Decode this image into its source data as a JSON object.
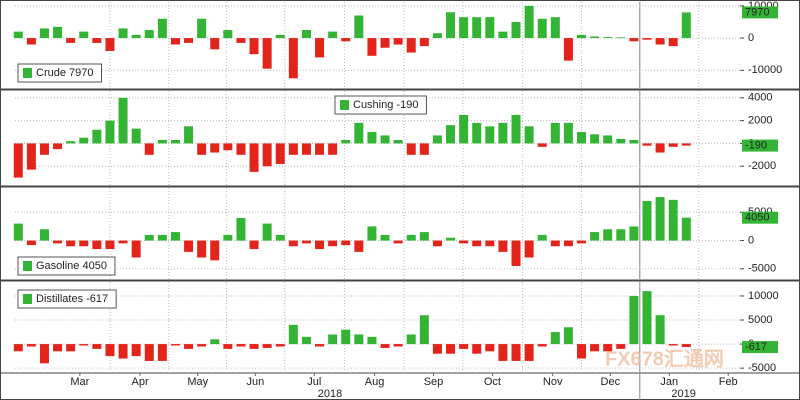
{
  "chart_data": {
    "type": "bar",
    "categories": [
      null,
      null,
      null,
      null,
      null,
      null,
      null,
      null,
      null,
      null,
      null,
      null,
      null,
      null,
      null,
      null,
      null,
      null,
      null,
      null,
      null,
      null,
      null,
      null,
      null,
      null,
      null,
      null,
      null,
      null,
      null,
      null,
      null,
      null,
      null,
      null,
      null,
      null,
      null,
      null,
      null,
      null,
      null,
      null,
      null,
      null,
      null,
      null,
      null,
      null,
      null,
      null
    ],
    "xlim": [
      -0.25,
      55.1
    ],
    "xticks": [
      {
        "value": 4.7,
        "label": "Mar"
      },
      {
        "value": 9.3,
        "label": "Apr"
      },
      {
        "value": 13.7,
        "label": "May"
      },
      {
        "value": 18.1,
        "label": "Jun"
      },
      {
        "value": 22.6,
        "label": "Jul"
      },
      {
        "value": 27.2,
        "label": "Aug"
      },
      {
        "value": 31.7,
        "label": "Sep"
      },
      {
        "value": 36.2,
        "label": "Oct"
      },
      {
        "value": 40.8,
        "label": "Nov"
      },
      {
        "value": 45.2,
        "label": "Dec"
      },
      {
        "value": 49.7,
        "label": "Jan"
      },
      {
        "value": 54.2,
        "label": "Feb"
      }
    ],
    "year_labels": [
      {
        "value": 23.8,
        "label": "2018"
      },
      {
        "value": 50.8,
        "label": "2019"
      }
    ],
    "positive_color": "#34b434",
    "negative_color": "#e3241b",
    "grid": true,
    "watermark": "FX678汇通网",
    "series": [
      {
        "name": "Crude",
        "legend": "Crude 7970",
        "last_label": 7970,
        "ylim": [
          -15500,
          11200
        ],
        "yticks": [
          -10000,
          0,
          10000
        ],
        "values": [
          2000,
          -2000,
          3000,
          3500,
          -1500,
          2000,
          -1500,
          -4000,
          3000,
          1000,
          2500,
          6000,
          -2000,
          -1500,
          6000,
          -3500,
          2500,
          -1500,
          -5000,
          -9500,
          1000,
          -12500,
          2500,
          -6000,
          2000,
          -1000,
          7000,
          -5500,
          -3000,
          -2000,
          -4500,
          -2500,
          1500,
          8000,
          6500,
          6500,
          6500,
          2000,
          5000,
          10000,
          6000,
          6500,
          -7000,
          1000,
          500,
          300,
          200,
          -1000,
          -500,
          -2000,
          -2500,
          7970
        ]
      },
      {
        "name": "Cushing",
        "legend": "Cushing -190",
        "last_label": -190,
        "ylim": [
          -3650,
          4600
        ],
        "yticks": [
          -2000,
          0,
          2000,
          4000
        ],
        "values": [
          -3000,
          -2300,
          -1000,
          -500,
          200,
          500,
          1200,
          2000,
          4000,
          1300,
          -1000,
          300,
          300,
          1500,
          -1000,
          -800,
          -600,
          -1000,
          -2500,
          -2000,
          -1800,
          -1000,
          -1000,
          -1000,
          -1000,
          300,
          1800,
          1000,
          700,
          300,
          -1000,
          -1000,
          700,
          1600,
          2500,
          1800,
          1500,
          1800,
          2500,
          1500,
          -300,
          1800,
          1800,
          1000,
          800,
          700,
          400,
          300,
          -200,
          -800,
          -300,
          -190
        ]
      },
      {
        "name": "Gasoline",
        "legend": "Gasoline 4050",
        "last_label": 4050,
        "ylim": [
          -6800,
          9300
        ],
        "yticks": [
          -5000,
          0,
          5000
        ],
        "values": [
          3000,
          -800,
          2000,
          -500,
          -1000,
          -1000,
          -1500,
          -1500,
          -500,
          -3000,
          1000,
          1000,
          1500,
          -2000,
          -3000,
          -3500,
          1000,
          4000,
          -1500,
          3000,
          1000,
          -1000,
          -500,
          -1500,
          -1000,
          -800,
          -2000,
          2500,
          1000,
          -500,
          1000,
          1500,
          -1000,
          500,
          -500,
          -1000,
          -1000,
          -2000,
          -4500,
          -3000,
          1000,
          -1000,
          -1000,
          -500,
          1500,
          2000,
          2000,
          2500,
          7000,
          7700,
          7200,
          4050
        ]
      },
      {
        "name": "Distillates",
        "legend": "Distillates -617",
        "last_label": -617,
        "ylim": [
          -5800,
          12900
        ],
        "yticks": [
          -5000,
          0,
          5000,
          10000
        ],
        "values": [
          -1500,
          -500,
          -4000,
          -1500,
          -1500,
          -300,
          -1000,
          -2500,
          -3000,
          -2500,
          -3500,
          -3500,
          -300,
          -1000,
          -500,
          1000,
          -1000,
          -500,
          -1000,
          -800,
          -500,
          4000,
          1500,
          -500,
          2000,
          3000,
          2000,
          1500,
          -800,
          -500,
          2000,
          6000,
          -2000,
          -2000,
          -1000,
          -2000,
          -1500,
          -3500,
          -3500,
          -3500,
          -500,
          2500,
          3500,
          -3000,
          -1500,
          -1500,
          -1000,
          10000,
          11000,
          6000,
          -300,
          -617
        ]
      }
    ]
  }
}
